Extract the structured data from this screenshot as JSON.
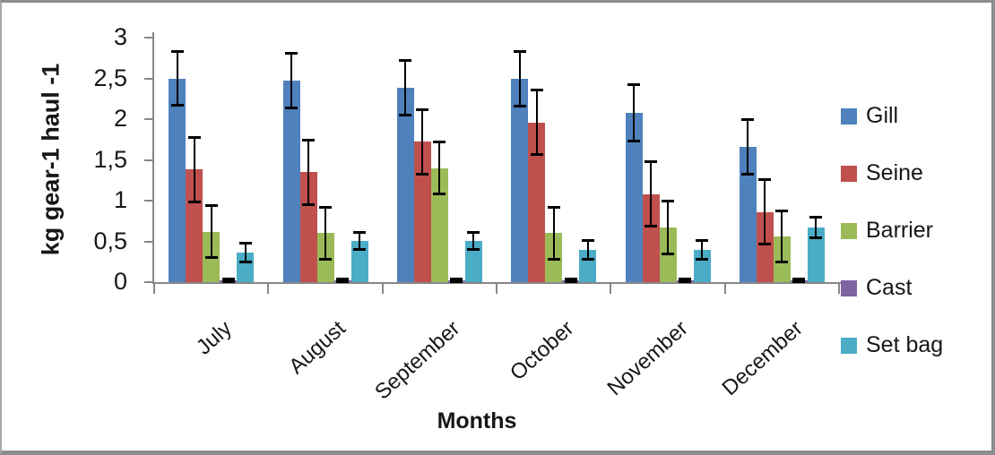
{
  "frame": {
    "background": "#ffffff",
    "border_color": "#8d8d8d"
  },
  "chart_data": {
    "type": "bar",
    "title": "",
    "xlabel": "Months",
    "ylabel": "kg gear-1 haul -1",
    "ylim": [
      0,
      3
    ],
    "ytick_step": 0.5,
    "ytick_labels": [
      "0",
      "0,5",
      "1",
      "1,5",
      "2",
      "2,5",
      "3"
    ],
    "grid": false,
    "legend_position": "right",
    "error_bars": true,
    "categories": [
      "July",
      "August",
      "September",
      "October",
      "November",
      "December"
    ],
    "series": [
      {
        "name": "Gill",
        "color": "#4F81BD",
        "values": [
          2.5,
          2.47,
          2.38,
          2.49,
          2.08,
          1.66
        ],
        "errors": [
          0.33,
          0.34,
          0.34,
          0.34,
          0.35,
          0.34
        ]
      },
      {
        "name": "Seine",
        "color": "#C0504D",
        "values": [
          1.38,
          1.35,
          1.72,
          1.96,
          1.08,
          0.86
        ],
        "errors": [
          0.4,
          0.4,
          0.4,
          0.4,
          0.4,
          0.4
        ]
      },
      {
        "name": "Barrier",
        "color": "#9BBB59",
        "values": [
          0.62,
          0.6,
          1.4,
          0.6,
          0.67,
          0.56
        ],
        "errors": [
          0.32,
          0.32,
          0.32,
          0.32,
          0.33,
          0.32
        ]
      },
      {
        "name": "Cast",
        "color": "#8064A2",
        "values": [
          0.02,
          0.02,
          0.02,
          0.02,
          0.02,
          0.02
        ],
        "errors": [
          0.02,
          0.02,
          0.02,
          0.02,
          0.02,
          0.02
        ]
      },
      {
        "name": "Set bag",
        "color": "#4BACC6",
        "values": [
          0.36,
          0.51,
          0.51,
          0.4,
          0.4,
          0.67
        ],
        "errors": [
          0.12,
          0.11,
          0.11,
          0.12,
          0.12,
          0.13
        ]
      }
    ]
  }
}
